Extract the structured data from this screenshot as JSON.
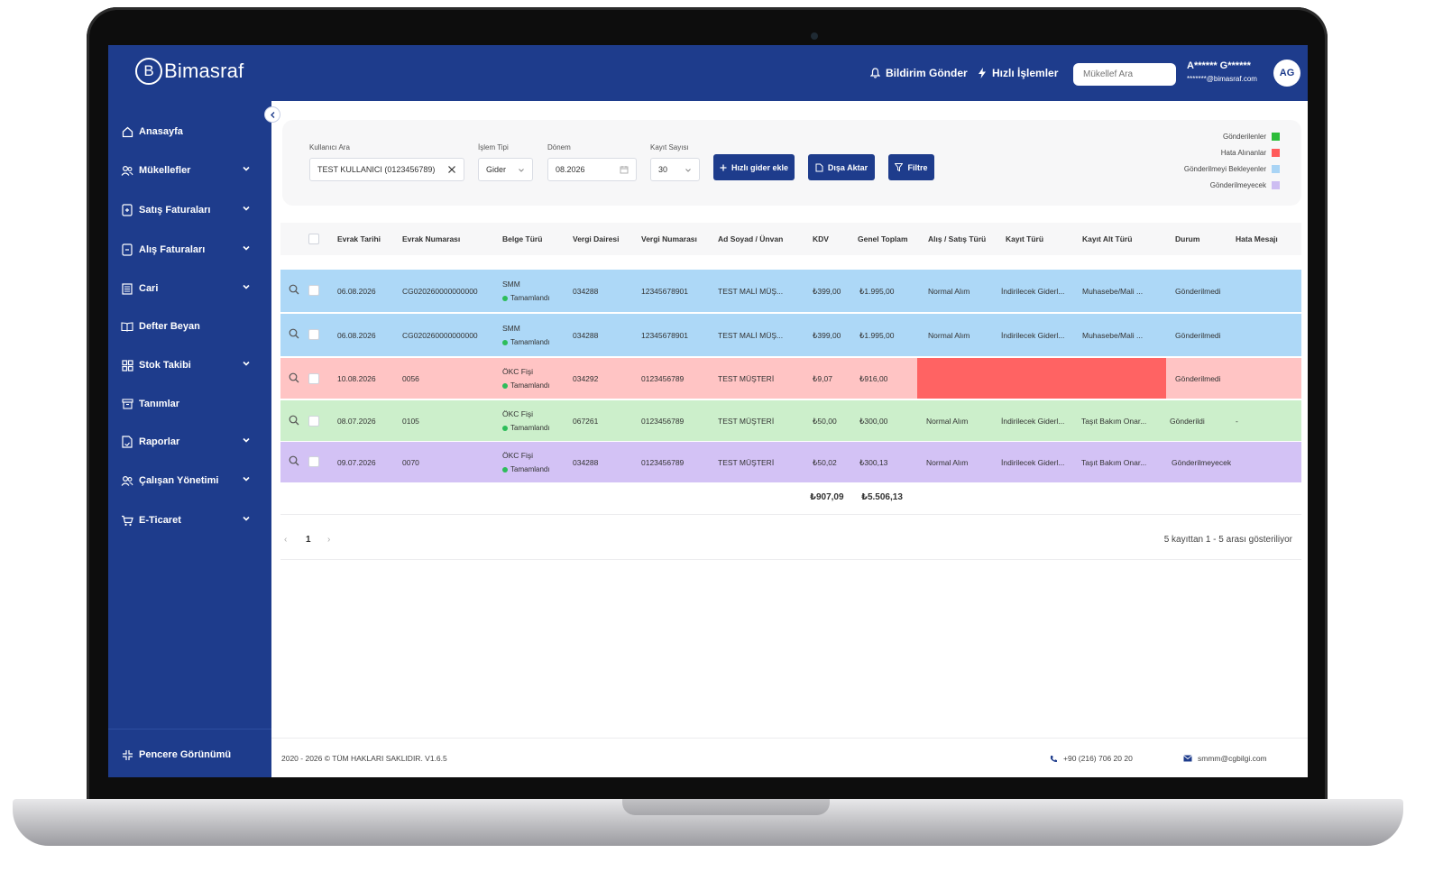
{
  "app": {
    "brand_name": "Bimasraf",
    "brand_letter": "B"
  },
  "colors": {
    "primary": "#1e3c8c",
    "row_sent": "#add8f7",
    "row_error": "#ffc4c4",
    "row_waiting": "#ccefcb",
    "row_not_sent": "#d3c2f5",
    "error_block": "#ff6363"
  },
  "topbar": {
    "notify_label": "Bildirim Gönder",
    "quick_ops_label": "Hızlı İşlemler",
    "search_placeholder": "Mükellef Ara",
    "user_name": "A****** G******",
    "user_email": "*******@bimasraf.com",
    "avatar_initials": "AG"
  },
  "sidebar": {
    "items": [
      {
        "label": "Anasayfa",
        "icon": "home-icon",
        "has_children": false
      },
      {
        "label": "Mükellefler",
        "icon": "users-icon",
        "has_children": true
      },
      {
        "label": "Satış Faturaları",
        "icon": "invoice-out-icon",
        "has_children": true
      },
      {
        "label": "Alış Faturaları",
        "icon": "invoice-in-icon",
        "has_children": true
      },
      {
        "label": "Cari",
        "icon": "ledger-icon",
        "has_children": true
      },
      {
        "label": "Defter Beyan",
        "icon": "book-icon",
        "has_children": false
      },
      {
        "label": "Stok Takibi",
        "icon": "grid-icon",
        "has_children": true
      },
      {
        "label": "Tanımlar",
        "icon": "box-icon",
        "has_children": false
      },
      {
        "label": "Raporlar",
        "icon": "report-icon",
        "has_children": true
      },
      {
        "label": "Çalışan Yönetimi",
        "icon": "team-icon",
        "has_children": true
      },
      {
        "label": "E-Ticaret",
        "icon": "cart-icon",
        "has_children": true
      }
    ],
    "footer_label": "Pencere Görünümü"
  },
  "filters": {
    "user_label": "Kullanıcı Ara",
    "user_value": "TEST KULLANICI (0123456789)",
    "type_label": "İşlem Tipi",
    "type_value": "Gider",
    "period_label": "Dönem",
    "period_value": "08.2026",
    "count_label": "Kayıt Sayısı",
    "count_value": "30",
    "quick_add_label": "Hızlı gider ekle",
    "export_label": "Dışa Aktar",
    "filter_label": "Filtre"
  },
  "legend": [
    {
      "label": "Gönderilenler",
      "color": "#2dbd3a"
    },
    {
      "label": "Hata Alınanlar",
      "color": "#ff5b5b"
    },
    {
      "label": "Gönderilmeyi Bekleyenler",
      "color": "#a9d4f5"
    },
    {
      "label": "Gönderilmeyecek",
      "color": "#cdbdf2"
    }
  ],
  "table": {
    "columns": [
      "Evrak Tarihi",
      "Evrak Numarası",
      "Belge Türü",
      "Vergi Dairesi",
      "Vergi Numarası",
      "Ad Soyad / Ünvan",
      "KDV",
      "Genel Toplam",
      "Alış / Satış Türü",
      "Kayıt Türü",
      "Kayıt Alt Türü",
      "Durum",
      "Hata Mesajı"
    ],
    "rows": [
      {
        "date": "06.08.2026",
        "number": "CG020260000000000",
        "doc_type": "SMM",
        "doc_status": "Tamamlandı",
        "tax_office": "034288",
        "tax_no": "12345678901",
        "name": "TEST MALİ MÜŞ...",
        "kdv": "₺399,00",
        "total": "₺1.995,00",
        "trade_type": "Normal Alım",
        "record_type": "İndirilecek Giderl...",
        "sub_type": "Muhasebe/Mali ...",
        "status": "Gönderilmedi",
        "error": ""
      },
      {
        "date": "06.08.2026",
        "number": "CG020260000000000",
        "doc_type": "SMM",
        "doc_status": "Tamamlandı",
        "tax_office": "034288",
        "tax_no": "12345678901",
        "name": "TEST MALİ MÜŞ...",
        "kdv": "₺399,00",
        "total": "₺1.995,00",
        "trade_type": "Normal Alım",
        "record_type": "İndirilecek Giderl...",
        "sub_type": "Muhasebe/Mali ...",
        "status": "Gönderilmedi",
        "error": ""
      },
      {
        "date": "10.08.2026",
        "number": "0056",
        "doc_type": "ÖKC Fişi",
        "doc_status": "Tamamlandı",
        "tax_office": "034292",
        "tax_no": "0123456789",
        "name": "TEST MÜŞTERİ",
        "kdv": "₺9,07",
        "total": "₺916,00",
        "trade_type": "",
        "record_type": "",
        "sub_type": "",
        "status": "Gönderilmedi",
        "error": ""
      },
      {
        "date": "08.07.2026",
        "number": "0105",
        "doc_type": "ÖKC Fişi",
        "doc_status": "Tamamlandı",
        "tax_office": "067261",
        "tax_no": "0123456789",
        "name": "TEST MÜŞTERİ",
        "kdv": "₺50,00",
        "total": "₺300,00",
        "trade_type": "Normal Alım",
        "record_type": "İndirilecek Giderl...",
        "sub_type": "Taşıt Bakım Onar...",
        "status": "Gönderildi",
        "error": "-"
      },
      {
        "date": "09.07.2026",
        "number": "0070",
        "doc_type": "ÖKC Fişi",
        "doc_status": "Tamamlandı",
        "tax_office": "034288",
        "tax_no": "0123456789",
        "name": "TEST MÜŞTERİ",
        "kdv": "₺50,02",
        "total": "₺300,13",
        "trade_type": "Normal Alım",
        "record_type": "İndirilecek Giderl...",
        "sub_type": "Taşıt Bakım Onar...",
        "status": "Gönderilmeyecek",
        "error": ""
      }
    ],
    "totals": {
      "kdv": "₺907,09",
      "total": "₺5.506,13"
    }
  },
  "pagination": {
    "prev": "‹",
    "current_page": "1",
    "next": "›",
    "summary": "5 kayıttan 1 - 5 arası gösteriliyor"
  },
  "footer": {
    "copyright": "2020 - 2026 © TÜM HAKLARI SAKLIDIR. V1.6.5",
    "phone": "+90 (216) 706 20 20",
    "email": "smmm@cgbilgi.com"
  }
}
